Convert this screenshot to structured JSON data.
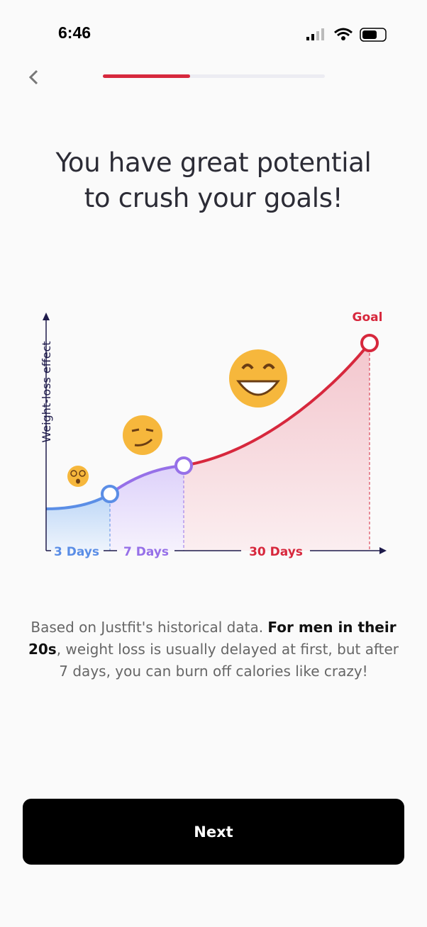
{
  "status_bar": {
    "time": "6:46"
  },
  "header": {
    "title_lines": [
      "You have great potential",
      "to crush your goals!"
    ]
  },
  "illustration": {
    "y_axis_label": "Weight-loss effect",
    "goal_label": "Goal",
    "stages": [
      "3 Days",
      "7 Days",
      "30 Days"
    ]
  },
  "body": {
    "parts": [
      "Based on Justfit's historical data. ",
      "For men in their 20s",
      ", weight loss is usually delayed at first, but after 7 days, you can burn off calories like crazy!"
    ]
  },
  "button": {
    "label": "Next"
  }
}
